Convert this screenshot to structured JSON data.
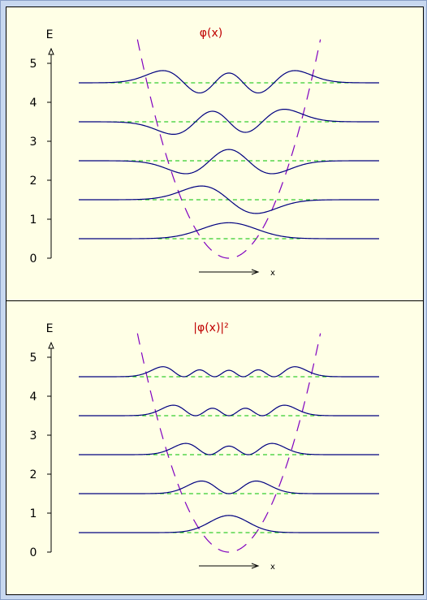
{
  "chart_data": [
    {
      "type": "line",
      "title": "φ(x)",
      "ylabel": "E",
      "xlabel": "x",
      "ylim": [
        0,
        5.5
      ],
      "yticks": [
        0,
        1,
        2,
        3,
        4,
        5
      ],
      "xlim": [
        -5.5,
        5.5
      ],
      "quantity": "psi",
      "series": [
        {
          "n": 0,
          "energy": 0.5
        },
        {
          "n": 1,
          "energy": 1.5
        },
        {
          "n": 2,
          "energy": 2.5
        },
        {
          "n": 3,
          "energy": 3.5
        },
        {
          "n": 4,
          "energy": 4.5
        }
      ],
      "potential": {
        "coefficient": 0.5
      },
      "colors": {
        "wave": "#000080",
        "level": "#00c000",
        "potential": "#8000c0",
        "title": "#c00000"
      }
    },
    {
      "type": "line",
      "title": "|φ(x)|²",
      "ylabel": "E",
      "xlabel": "x",
      "ylim": [
        0,
        5.5
      ],
      "yticks": [
        0,
        1,
        2,
        3,
        4,
        5
      ],
      "xlim": [
        -5.5,
        5.5
      ],
      "quantity": "psi2",
      "series": [
        {
          "n": 0,
          "energy": 0.5
        },
        {
          "n": 1,
          "energy": 1.5
        },
        {
          "n": 2,
          "energy": 2.5
        },
        {
          "n": 3,
          "energy": 3.5
        },
        {
          "n": 4,
          "energy": 4.5
        }
      ],
      "potential": {
        "coefficient": 0.5
      },
      "colors": {
        "wave": "#000080",
        "level": "#00c000",
        "potential": "#8000c0",
        "title": "#c00000"
      }
    }
  ]
}
